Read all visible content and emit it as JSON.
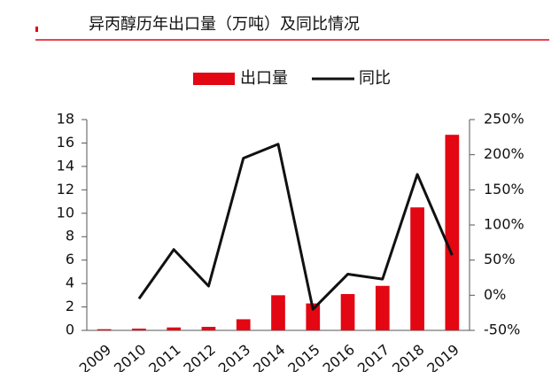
{
  "chart_data": {
    "type": "bar",
    "title": "异丙醇历年出口量（万吨）及同比情况",
    "categories": [
      "2009",
      "2010",
      "2011",
      "2012",
      "2013",
      "2014",
      "2015",
      "2016",
      "2017",
      "2018",
      "2019"
    ],
    "series": [
      {
        "name": "出口量",
        "type": "bar",
        "color": "#e30613",
        "values": [
          0.1,
          0.15,
          0.25,
          0.3,
          0.95,
          3.0,
          2.3,
          3.1,
          3.8,
          10.5,
          16.7
        ]
      },
      {
        "name": "同比",
        "type": "line",
        "axis": "y2",
        "color": "#111111",
        "values": [
          null,
          -5,
          65,
          13,
          195,
          215,
          -20,
          30,
          23,
          172,
          57
        ]
      }
    ],
    "ylim": [
      0,
      18
    ],
    "yticks": [
      0,
      2,
      4,
      6,
      8,
      10,
      12,
      14,
      16,
      18
    ],
    "y2lim": [
      -50,
      250
    ],
    "y2ticks": [
      {
        "value": -50,
        "label": "-50%"
      },
      {
        "value": 0,
        "label": "0%"
      },
      {
        "value": 50,
        "label": "50%"
      },
      {
        "value": 100,
        "label": "100%"
      },
      {
        "value": 150,
        "label": "150%"
      },
      {
        "value": 200,
        "label": "200%"
      },
      {
        "value": 250,
        "label": "250%"
      }
    ]
  }
}
